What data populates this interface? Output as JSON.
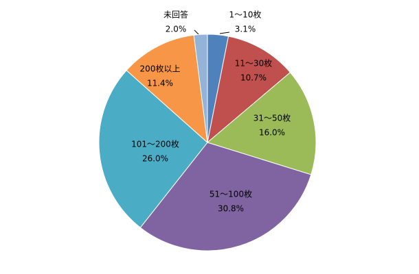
{
  "chart_data": {
    "type": "pie",
    "categories": [
      "1～10枚",
      "11～30枚",
      "31～50枚",
      "51～100枚",
      "101～200枚",
      "200枚以上",
      "未回答"
    ],
    "values": [
      3.1,
      10.7,
      16.0,
      30.8,
      26.0,
      11.4,
      2.0
    ],
    "value_labels": [
      "3.1%",
      "10.7%",
      "16.0%",
      "30.8%",
      "26.0%",
      "11.4%",
      "2.0%"
    ],
    "colors": [
      "#4f81bd",
      "#c0504d",
      "#9bbb59",
      "#8064a2",
      "#4bacc6",
      "#f79646",
      "#95b3d7"
    ]
  }
}
